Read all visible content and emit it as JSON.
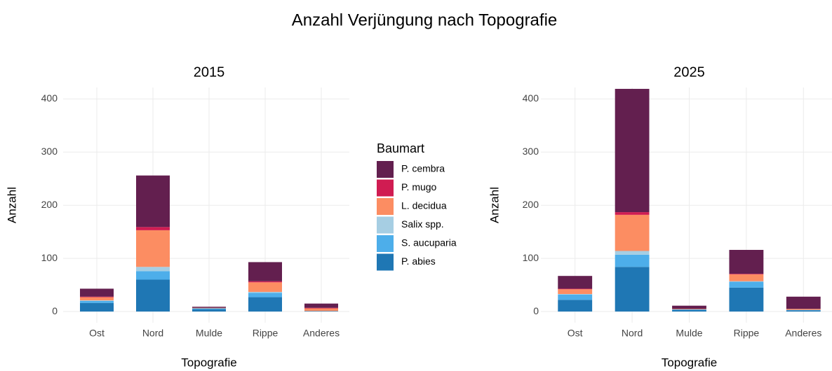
{
  "title": "Anzahl Verjüngung nach Topografie",
  "legend_title": "Baumart",
  "chart_data": [
    {
      "type": "bar",
      "stacked": true,
      "title": "2015",
      "xlabel": "Topografie",
      "ylabel": "Anzahl",
      "categories": [
        "Ost",
        "Nord",
        "Mulde",
        "Rippe",
        "Anderes"
      ],
      "ylim": [
        -21,
        440
      ],
      "yticks": [
        0,
        100,
        200,
        300,
        400
      ],
      "grid": true,
      "series": [
        {
          "name": "P. abies",
          "color": "#1f77b4",
          "values": [
            16,
            60,
            4,
            27,
            1
          ]
        },
        {
          "name": "S. aucuparia",
          "color": "#4daeea",
          "values": [
            4,
            16,
            2,
            8,
            0
          ]
        },
        {
          "name": "Salix spp.",
          "color": "#a6cee3",
          "values": [
            1,
            8,
            0,
            2,
            0
          ]
        },
        {
          "name": "L. decidua",
          "color": "#fc8d62",
          "values": [
            6,
            69,
            1,
            18,
            5
          ]
        },
        {
          "name": "P. mugo",
          "color": "#d01c52",
          "values": [
            1,
            6,
            0,
            2,
            1
          ]
        },
        {
          "name": "P. cembra",
          "color": "#631f4f",
          "values": [
            15,
            97,
            2,
            36,
            8
          ]
        }
      ]
    },
    {
      "type": "bar",
      "stacked": true,
      "title": "2025",
      "xlabel": "Topografie",
      "ylabel": "Anzahl",
      "categories": [
        "Ost",
        "Nord",
        "Mulde",
        "Rippe",
        "Anderes"
      ],
      "ylim": [
        -21,
        440
      ],
      "yticks": [
        0,
        100,
        200,
        300,
        400
      ],
      "grid": true,
      "series": [
        {
          "name": "P. abies",
          "color": "#1f77b4",
          "values": [
            22,
            84,
            3,
            45,
            2
          ]
        },
        {
          "name": "S. aucuparia",
          "color": "#4daeea",
          "values": [
            10,
            23,
            1,
            11,
            1
          ]
        },
        {
          "name": "Salix spp.",
          "color": "#a6cee3",
          "values": [
            1,
            7,
            0,
            1,
            0
          ]
        },
        {
          "name": "L. decidua",
          "color": "#fc8d62",
          "values": [
            9,
            68,
            1,
            13,
            2
          ]
        },
        {
          "name": "P. mugo",
          "color": "#d01c52",
          "values": [
            1,
            5,
            0,
            1,
            0
          ]
        },
        {
          "name": "P. cembra",
          "color": "#631f4f",
          "values": [
            24,
            232,
            6,
            45,
            23
          ]
        }
      ]
    }
  ]
}
